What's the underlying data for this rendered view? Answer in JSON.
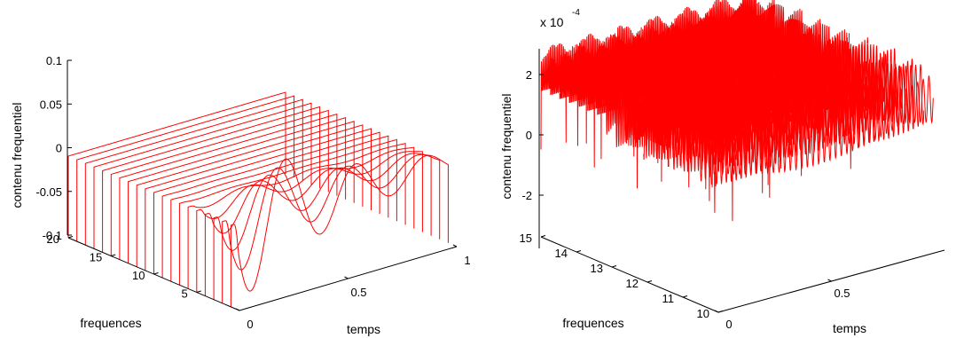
{
  "chart_data": [
    {
      "type": "line",
      "view": "3d-waterfall",
      "xlabel": "temps",
      "ylabel": "frequences",
      "zlabel": "contenu frequentiel",
      "xlim": [
        0,
        1
      ],
      "ylim": [
        0,
        20
      ],
      "zlim": [
        -0.1,
        0.1
      ],
      "xticks": [
        0,
        0.5,
        1
      ],
      "xtick_labels": [
        "0",
        "0.5",
        "1"
      ],
      "yticks": [
        5,
        10,
        15,
        20
      ],
      "ytick_labels": [
        "5",
        "10",
        "15",
        "20"
      ],
      "zticks": [
        -0.1,
        -0.05,
        0,
        0.05,
        0.1
      ],
      "ztick_labels": [
        "-0.1",
        "-0.05",
        "0",
        "0.05",
        "0.1"
      ],
      "line_color": "#ff0000",
      "series_count": 20,
      "frequencies": [
        1,
        2,
        3,
        4,
        5,
        6,
        7,
        8,
        9,
        10,
        11,
        12,
        13,
        14,
        15,
        16,
        17,
        18,
        19,
        20
      ],
      "curve_shape": "damped oscillation, strong at low frequency index, flat near zero at high index",
      "approx_front_series": {
        "frequence": 1,
        "x": [
          0,
          0.1,
          0.2,
          0.3,
          0.4,
          0.5,
          0.6,
          0.7,
          0.8,
          0.9,
          1.0
        ],
        "z": [
          0,
          -0.1,
          0.02,
          -0.07,
          0.015,
          -0.03,
          0.01,
          -0.012,
          0.004,
          -0.003,
          0
        ]
      }
    },
    {
      "type": "line",
      "view": "3d-waterfall",
      "xlabel": "temps",
      "ylabel": "frequences",
      "zlabel": "contenu frequentiel",
      "xlim": [
        0,
        1
      ],
      "ylim": [
        10,
        15
      ],
      "zlim": [
        -0.0003,
        0.0003
      ],
      "xticks": [
        0,
        0.5
      ],
      "xtick_labels": [
        "0",
        "0.5"
      ],
      "yticks": [
        10,
        11,
        12,
        13,
        14,
        15
      ],
      "ytick_labels": [
        "10",
        "11",
        "12",
        "13",
        "14",
        "15"
      ],
      "zticks": [
        -0.0002,
        0,
        0.0002
      ],
      "ztick_labels": [
        "-2",
        "0",
        "2"
      ],
      "axis_multiplier": {
        "base": "x 10",
        "exponent": "-4"
      },
      "line_color": "#ff0000",
      "series_count": 20,
      "frequencies_range": [
        10,
        15
      ],
      "curve_shape": "dense high-frequency oscillation of amplitude about 2e-4 across all frequencies"
    }
  ]
}
